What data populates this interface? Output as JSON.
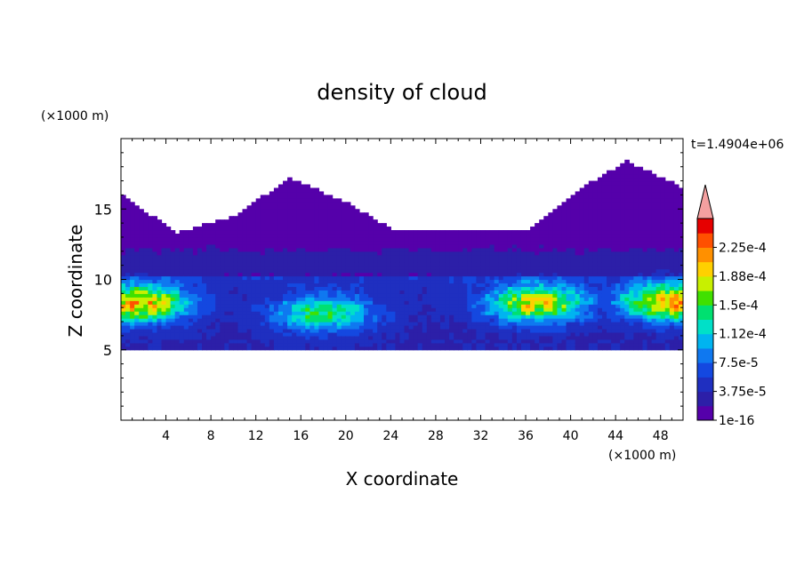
{
  "chart_data": {
    "type": "heatmap",
    "title": "density of cloud",
    "xlabel": "X coordinate",
    "ylabel": "Z coordinate",
    "x_unit": "(×1000 m)",
    "y_unit": "(×1000 m)",
    "time_label": "t=1.4904e+06",
    "xlim": [
      0,
      50
    ],
    "ylim": [
      0,
      20
    ],
    "x_ticks": [
      4,
      8,
      12,
      16,
      20,
      24,
      28,
      32,
      36,
      40,
      44,
      48
    ],
    "x_tick_labels": [
      "4",
      "8",
      "12",
      "16",
      "20",
      "24",
      "28",
      "32",
      "36",
      "40",
      "44",
      "48"
    ],
    "y_ticks": [
      5,
      10,
      15
    ],
    "y_tick_labels": [
      "5",
      "10",
      "15"
    ],
    "colorbar": {
      "levels": [
        1e-16,
        1.875e-05,
        3.75e-05,
        5.625e-05,
        7.5e-05,
        9.375e-05,
        0.0001125,
        0.00013125,
        0.00015,
        0.00016875,
        0.0001875,
        0.00020625,
        0.000225,
        0.00024375
      ],
      "labels": [
        "1e-16",
        "3.75e-5",
        "7.5e-5",
        "1.12e-4",
        "1.5e-4",
        "1.88e-4",
        "2.25e-4"
      ],
      "colors": [
        "#5500aa",
        "#2c1fa8",
        "#1f2fc0",
        "#1448e0",
        "#0f78f0",
        "#00b4f0",
        "#00e0c8",
        "#00e070",
        "#40e000",
        "#c8f000",
        "#ffd000",
        "#ff9000",
        "#ff5000",
        "#e60000"
      ],
      "overflow_color": "#f4a0a0"
    },
    "z_description": "layered cloud density field, max ~1.7e-4 near z≈8 km",
    "features": {
      "cloud_base_km": 5,
      "dense_layer_peaks": [
        {
          "x": 1.5,
          "z": 8.3,
          "value": 0.00017
        },
        {
          "x": 18,
          "z": 7.6,
          "value": 0.00011
        },
        {
          "x": 37,
          "z": 8.3,
          "value": 0.00015
        },
        {
          "x": 49,
          "z": 8.4,
          "value": 0.00017
        }
      ],
      "cloud_top_km": [
        {
          "x": 0,
          "z": 16
        },
        {
          "x": 5,
          "z": 13.3
        },
        {
          "x": 10,
          "z": 14.5
        },
        {
          "x": 15,
          "z": 17.2
        },
        {
          "x": 20,
          "z": 15.5
        },
        {
          "x": 24,
          "z": 13.6
        },
        {
          "x": 30,
          "z": 13.5
        },
        {
          "x": 36,
          "z": 13.5
        },
        {
          "x": 42,
          "z": 17
        },
        {
          "x": 45,
          "z": 18.4
        },
        {
          "x": 50,
          "z": 16.5
        }
      ]
    }
  }
}
